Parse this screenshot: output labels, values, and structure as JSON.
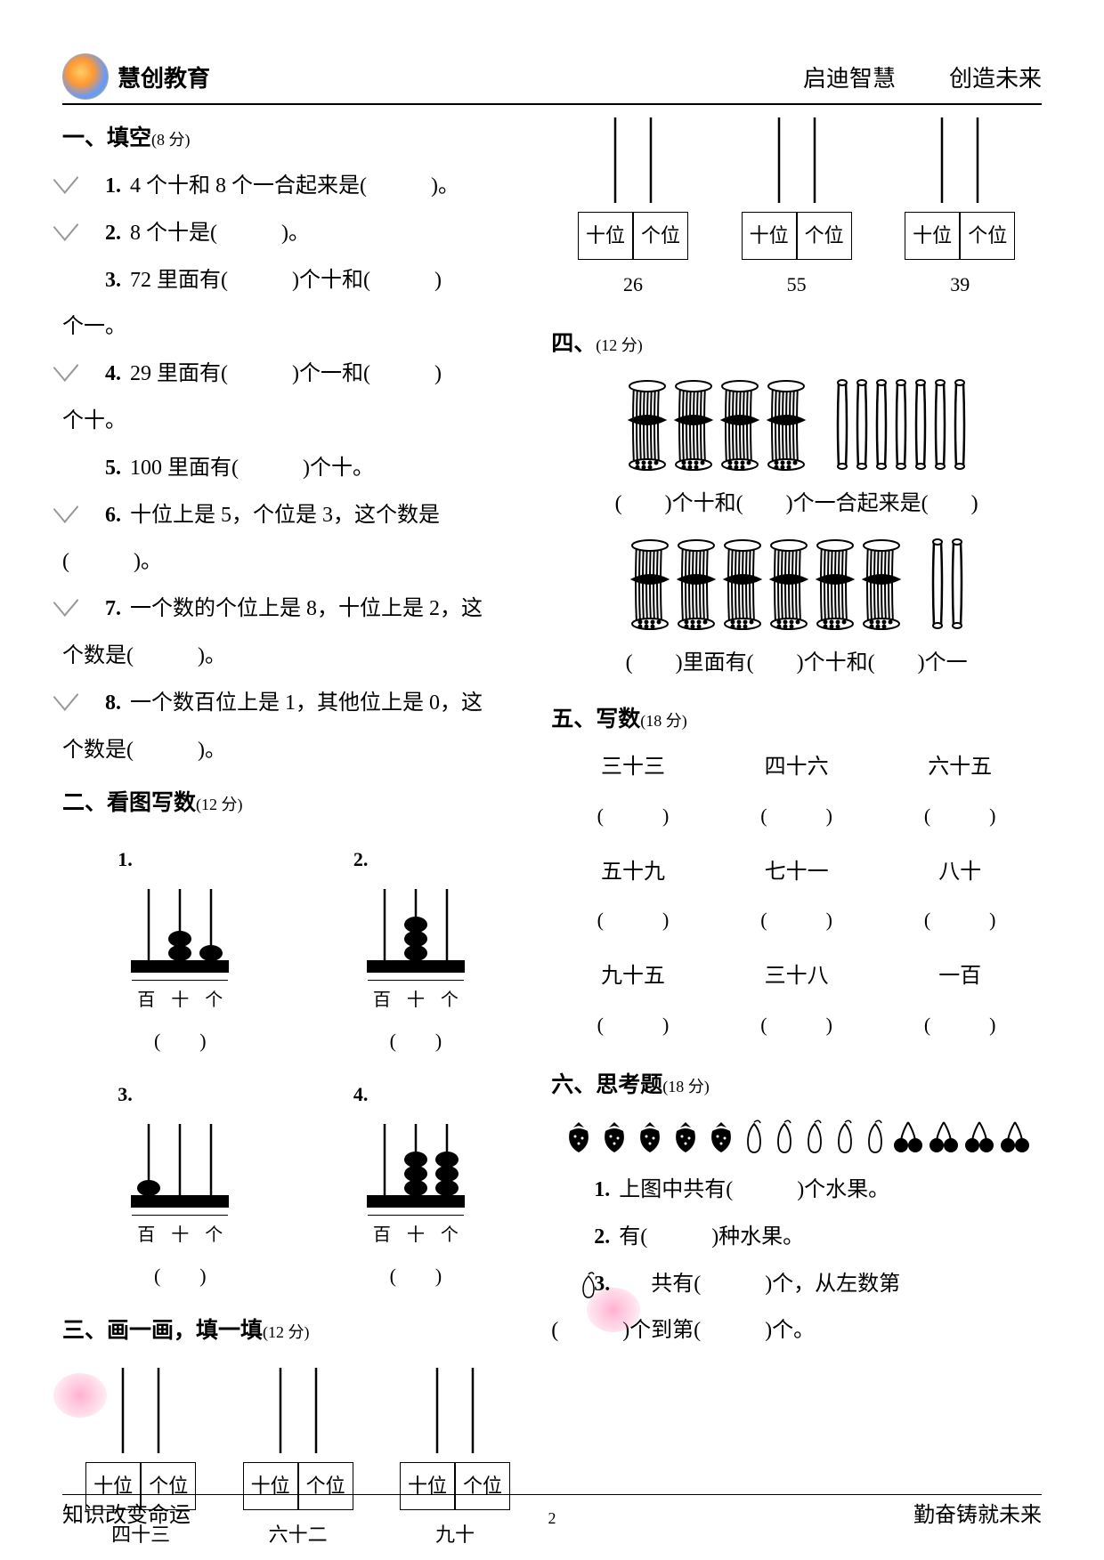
{
  "header": {
    "org": "慧创教育",
    "motto1": "启迪智慧",
    "motto2": "创造未来"
  },
  "footer": {
    "left": "知识改变命运",
    "right": "勤奋铸就未来",
    "page": "2"
  },
  "s1": {
    "title": "一、填空",
    "points": "(8 分)",
    "q1": "4 个十和 8 个一合起来是(　　　)。",
    "q2": "8 个十是(　　　)。",
    "q3a": "72 里面有(　　　)个十和(　　　)",
    "q3b": "个一。",
    "q4a": "29 里面有(　　　)个一和(　　　)",
    "q4b": "个十。",
    "q5": "100 里面有(　　　)个十。",
    "q6a": "十位上是 5，个位是 3，这个数是",
    "q6b": "(　　　)。",
    "q7a": "一个数的个位上是 8，十位上是 2，这",
    "q7b": "个数是(　　　)。",
    "q8a": "一个数百位上是 1，其他位上是 0，这",
    "q8b": "个数是(　　　)。"
  },
  "s2": {
    "title": "二、看图写数",
    "points": "(12 分)",
    "labels": [
      "百",
      "十",
      "个"
    ],
    "paren": "(　　)",
    "abacus": [
      {
        "n": "1.",
        "beads": [
          0,
          2,
          1
        ]
      },
      {
        "n": "2.",
        "beads": [
          0,
          3,
          0
        ]
      },
      {
        "n": "3.",
        "beads": [
          1,
          0,
          0
        ]
      },
      {
        "n": "4.",
        "beads": [
          0,
          3,
          3
        ]
      }
    ]
  },
  "s3": {
    "title": "三、画一画，填一填",
    "points": "(12 分)",
    "tens": "十位",
    "ones": "个位",
    "items_a": [
      "四十三",
      "六十二",
      "九十"
    ],
    "items_b": [
      "26",
      "55",
      "39"
    ]
  },
  "s4": {
    "title": "四、",
    "points": "(12 分)",
    "line1": "(　　)个十和(　　)个一合起来是(　　)",
    "line2": "(　　)里面有(　　)个十和(　　)个一",
    "set1": {
      "bundles": 4,
      "sticks": 7
    },
    "set2": {
      "bundles": 6,
      "sticks": 2
    }
  },
  "s5": {
    "title": "五、写数",
    "points": "(18 分)",
    "items": [
      "三十三",
      "四十六",
      "六十五",
      "五十九",
      "七十一",
      "八十",
      "九十五",
      "三十八",
      "一百"
    ],
    "paren": "(　　　)"
  },
  "s6": {
    "title": "六、思考题",
    "points": "(18 分)",
    "fruits": {
      "strawberry": 5,
      "pear": 5,
      "cherry": 4
    },
    "q1": "上图中共有(　　　)个水果。",
    "q2": "有(　　　)种水果。",
    "q3a": "共有(　　　)个，从左数第",
    "q3b": "(　　　)个到第(　　　)个。"
  }
}
